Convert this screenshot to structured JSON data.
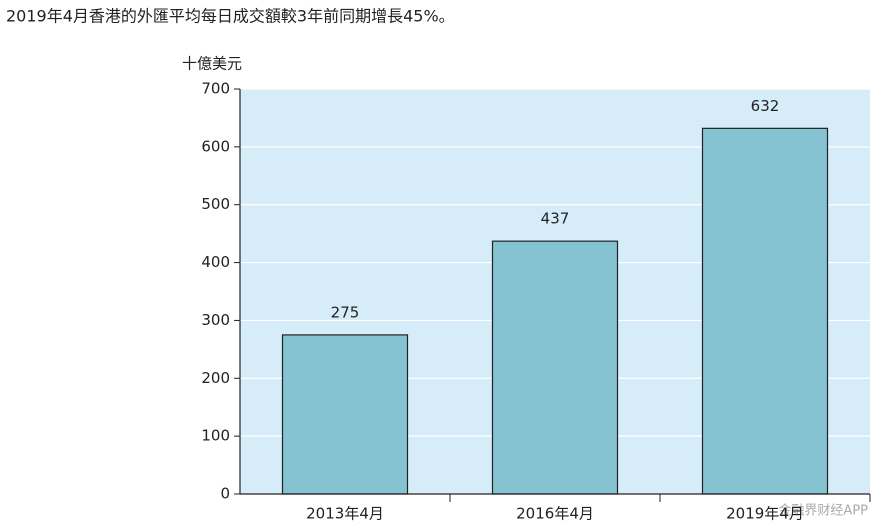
{
  "chart_data": {
    "type": "bar",
    "title": "2019年4月香港的外匯平均每日成交額較3年前同期增長45%。",
    "y_label": "十億美元",
    "categories": [
      "2013年4月",
      "2016年4月",
      "2019年4月"
    ],
    "values": [
      275,
      437,
      632
    ],
    "color": "#85c3d3",
    "ylim": [
      0,
      700
    ],
    "yticks": [
      0,
      100,
      200,
      300,
      400,
      500,
      600,
      700
    ],
    "grid": true,
    "watermark": "金融界财经APP"
  }
}
